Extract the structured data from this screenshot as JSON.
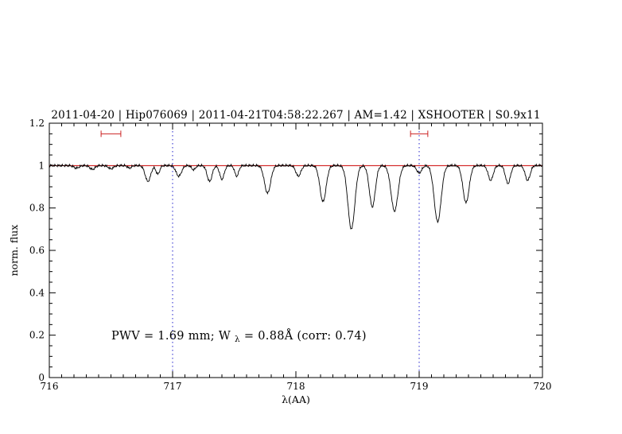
{
  "title": "2011-04-20 | Hip076069 | 2011-04-21T04:58:22.267 | AM=1.42 | XSHOOTER | S0.9x11",
  "annotation": {
    "prefix": "PWV = 1.69 mm; W",
    "sub": "λ",
    "suffix": " = 0.88Å (corr: 0.74)"
  },
  "colors": {
    "title": "#0000cc",
    "annotation": "#0000cc",
    "continuum_line": "#cc0000",
    "guide_line": "#2222cc",
    "range_marker": "#cc2222",
    "spectrum": "#000000",
    "axis": "#000000"
  },
  "chart_data": {
    "type": "line",
    "title": "2011-04-20 | Hip076069 | 2011-04-21T04:58:22.267 | AM=1.42 | XSHOOTER | S0.9x11",
    "xlabel": "λ(AA)",
    "ylabel": "norm. flux",
    "xlim": [
      716,
      720
    ],
    "ylim": [
      0,
      1.2
    ],
    "xticks": [
      716,
      717,
      718,
      719,
      720
    ],
    "yticks": [
      0,
      0.2,
      0.4,
      0.6,
      0.8,
      1,
      1.2
    ],
    "x_minor_step": 0.1,
    "y_minor_step": 0.05,
    "grid": false,
    "legend": "none",
    "continuum_line": {
      "y": 1.0
    },
    "guide_lines": {
      "x": [
        717,
        719
      ],
      "style": "dotted"
    },
    "range_markers": {
      "y": 1.15,
      "ranges": [
        [
          716.42,
          716.58
        ],
        [
          718.93,
          719.07
        ]
      ]
    },
    "spectrum": {
      "continuum": 1.0,
      "sample_step": 0.005,
      "noise": [
        [
          0.004,
          523,
          0.0
        ],
        [
          0.0025,
          211,
          1.3
        ]
      ],
      "absorption_lines": [
        {
          "center": 716.22,
          "depth": 0.012,
          "sigma": 0.02
        },
        {
          "center": 716.35,
          "depth": 0.018,
          "sigma": 0.02
        },
        {
          "center": 716.5,
          "depth": 0.015,
          "sigma": 0.02
        },
        {
          "center": 716.65,
          "depth": 0.012,
          "sigma": 0.015
        },
        {
          "center": 716.8,
          "depth": 0.075,
          "sigma": 0.022
        },
        {
          "center": 716.88,
          "depth": 0.04,
          "sigma": 0.015
        },
        {
          "center": 717.05,
          "depth": 0.05,
          "sigma": 0.022
        },
        {
          "center": 717.17,
          "depth": 0.02,
          "sigma": 0.015
        },
        {
          "center": 717.3,
          "depth": 0.075,
          "sigma": 0.02
        },
        {
          "center": 717.4,
          "depth": 0.065,
          "sigma": 0.018
        },
        {
          "center": 717.52,
          "depth": 0.05,
          "sigma": 0.016
        },
        {
          "center": 717.77,
          "depth": 0.13,
          "sigma": 0.025
        },
        {
          "center": 718.02,
          "depth": 0.05,
          "sigma": 0.02
        },
        {
          "center": 718.22,
          "depth": 0.17,
          "sigma": 0.025
        },
        {
          "center": 718.45,
          "depth": 0.3,
          "sigma": 0.028
        },
        {
          "center": 718.62,
          "depth": 0.195,
          "sigma": 0.024
        },
        {
          "center": 718.8,
          "depth": 0.215,
          "sigma": 0.028
        },
        {
          "center": 719.0,
          "depth": 0.035,
          "sigma": 0.02
        },
        {
          "center": 719.15,
          "depth": 0.265,
          "sigma": 0.028
        },
        {
          "center": 719.38,
          "depth": 0.175,
          "sigma": 0.025
        },
        {
          "center": 719.58,
          "depth": 0.07,
          "sigma": 0.02
        },
        {
          "center": 719.72,
          "depth": 0.085,
          "sigma": 0.02
        },
        {
          "center": 719.88,
          "depth": 0.07,
          "sigma": 0.02
        }
      ]
    }
  }
}
